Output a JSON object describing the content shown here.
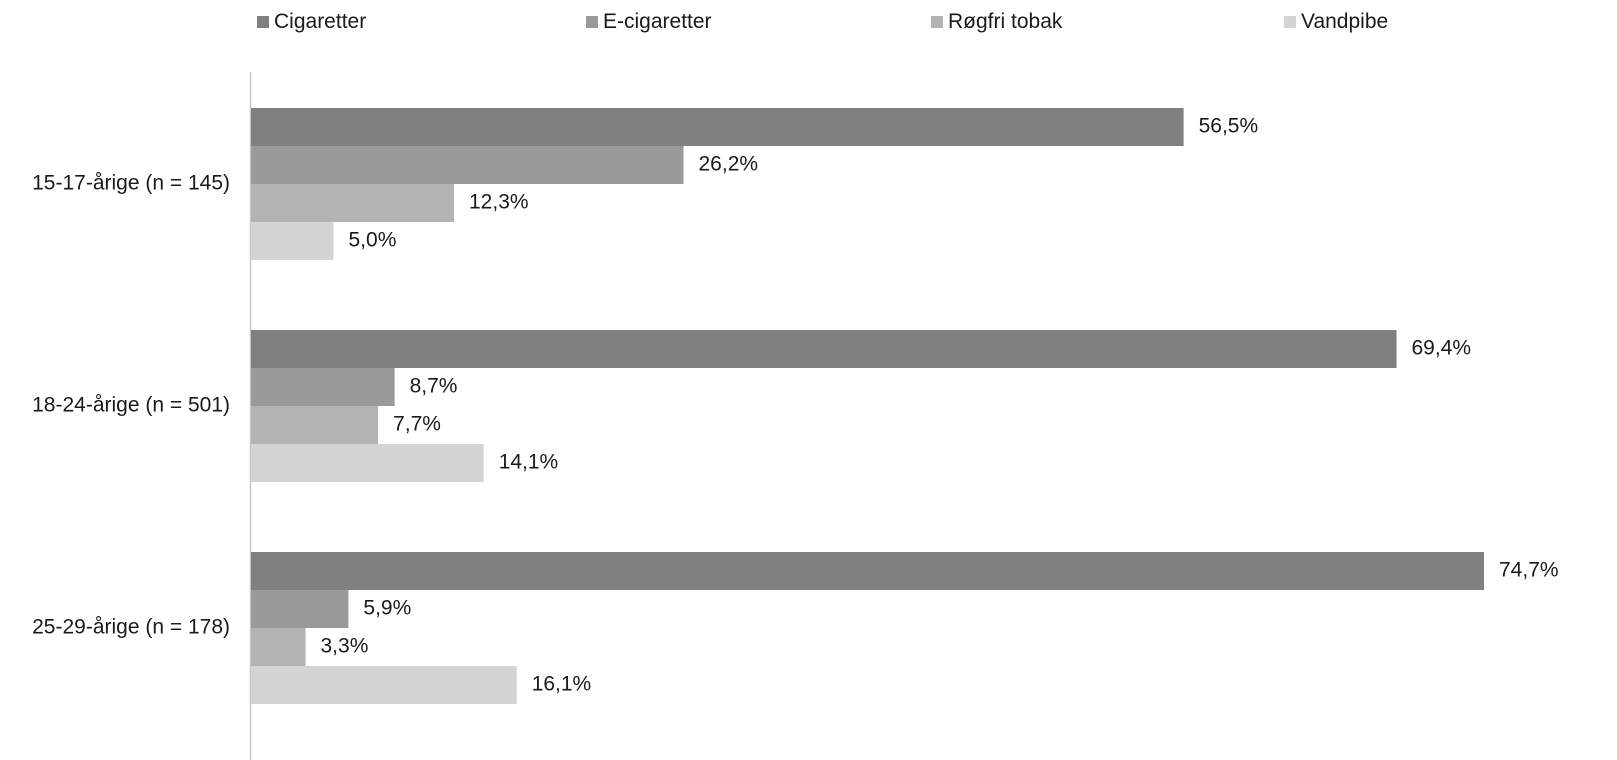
{
  "chart_data": {
    "type": "bar",
    "orientation": "horizontal",
    "categories": [
      "15-17-årige (n = 145)",
      "18-24-årige (n = 501)",
      "25-29-årige (n = 178)"
    ],
    "series": [
      {
        "name": "Cigaretter",
        "color": "#808080",
        "values": [
          56.5,
          69.4,
          74.7
        ],
        "labels": [
          "56,5%",
          "69,4%",
          "74,7%"
        ]
      },
      {
        "name": "E-cigaretter",
        "color": "#999999",
        "values": [
          26.2,
          8.7,
          5.9
        ],
        "labels": [
          "26,2%",
          "8,7%",
          "5,9%"
        ]
      },
      {
        "name": "Røgfri tobak",
        "color": "#b3b3b3",
        "values": [
          12.3,
          7.7,
          3.3
        ],
        "labels": [
          "12,3%",
          "7,7%",
          "3,3%"
        ]
      },
      {
        "name": "Vandpibe",
        "color": "#d4d4d4",
        "values": [
          5.0,
          14.1,
          16.1
        ],
        "labels": [
          "5,0%",
          "14,1%",
          "16,1%"
        ]
      }
    ],
    "xlim": [
      0,
      80
    ],
    "grid": false,
    "legend": "top"
  }
}
